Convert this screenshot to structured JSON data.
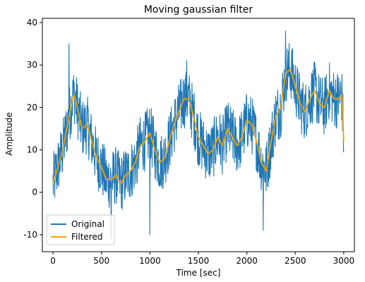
{
  "chart_data": {
    "type": "line",
    "title": "Moving gaussian filter",
    "xlabel": "Time [sec]",
    "ylabel": "Amplitude",
    "xlim": [
      -110,
      3110
    ],
    "ylim": [
      -14,
      41
    ],
    "xticks": [
      0,
      500,
      1000,
      1500,
      2000,
      2500,
      3000
    ],
    "yticks": [
      -10,
      0,
      10,
      20,
      30,
      40
    ],
    "grid": false,
    "legend": {
      "position": "lower-left"
    },
    "series": [
      {
        "name": "Original",
        "color": "#1f77b4",
        "style": "noisy signal around the filtered trend",
        "noise_amplitude": 7,
        "peaks": [
          {
            "x": 165,
            "y": 35
          },
          {
            "x": 1380,
            "y": 31
          },
          {
            "x": 2400,
            "y": 38
          }
        ],
        "troughs": [
          {
            "x": 600,
            "y": -11
          },
          {
            "x": 1000,
            "y": -10
          },
          {
            "x": 2170,
            "y": -9
          }
        ]
      },
      {
        "name": "Filtered",
        "color": "#f0a30a",
        "x": [
          0,
          50,
          100,
          150,
          200,
          220,
          250,
          300,
          350,
          400,
          450,
          500,
          550,
          600,
          650,
          700,
          750,
          800,
          850,
          900,
          950,
          1000,
          1050,
          1100,
          1150,
          1200,
          1250,
          1300,
          1350,
          1400,
          1450,
          1500,
          1550,
          1600,
          1650,
          1700,
          1750,
          1800,
          1850,
          1900,
          1950,
          2000,
          2050,
          2100,
          2150,
          2200,
          2250,
          2300,
          2350,
          2400,
          2450,
          2500,
          2550,
          2600,
          2650,
          2700,
          2750,
          2800,
          2850,
          2900,
          2950,
          2980,
          3000
        ],
        "y": [
          2,
          6,
          10,
          16,
          22,
          23,
          20,
          15,
          16,
          12,
          8,
          6,
          3,
          3,
          4,
          2,
          4,
          5,
          7,
          11,
          12,
          14,
          10,
          7,
          8,
          12,
          16,
          19,
          22,
          22,
          18,
          13,
          11,
          9,
          10,
          13,
          11,
          15,
          13,
          11,
          13,
          17,
          16,
          12,
          7,
          5,
          12,
          18,
          20,
          28,
          29,
          25,
          21,
          19,
          22,
          24,
          21,
          20,
          24,
          22,
          22,
          23,
          12
        ]
      }
    ]
  }
}
